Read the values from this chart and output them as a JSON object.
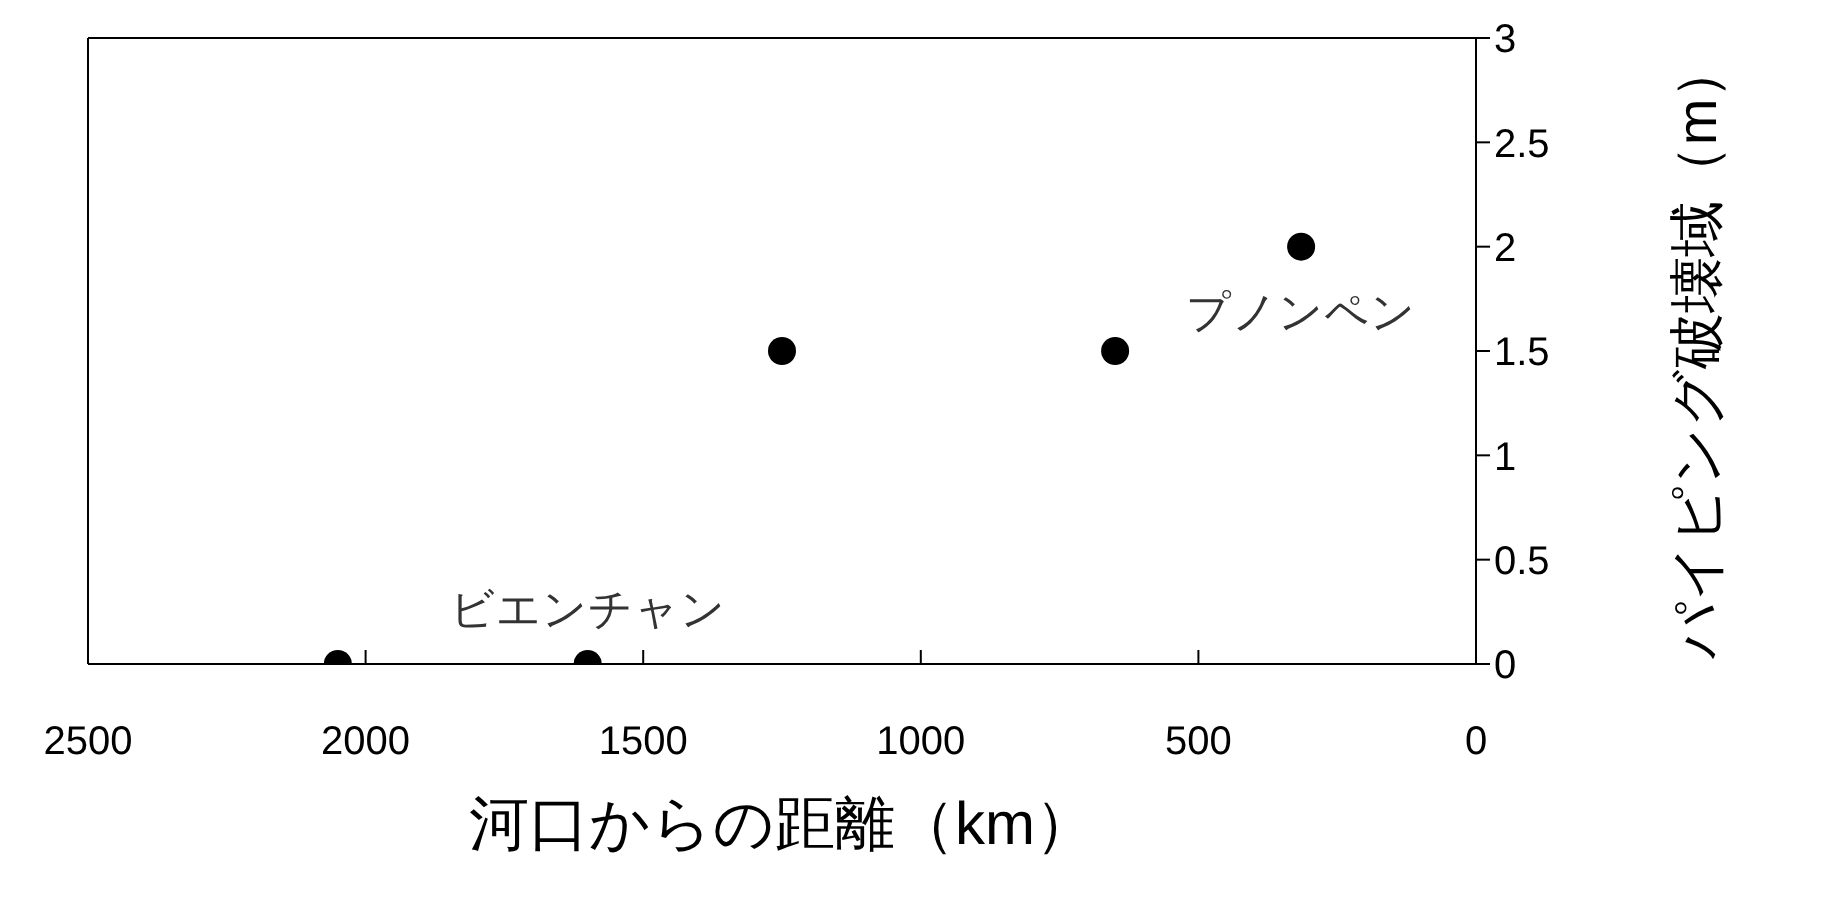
{
  "chart_data": {
    "type": "scatter",
    "xlabel": "河口からの距離（km）",
    "ylabel": "パイピング破壊域（m）",
    "x": [
      2050,
      1600,
      1250,
      650,
      315
    ],
    "values": [
      0,
      0,
      1.5,
      1.5,
      2
    ],
    "color": "#000000",
    "marker": "circle",
    "xlim": [
      2500,
      0
    ],
    "xticks": [
      2500,
      2000,
      1500,
      1000,
      500,
      0
    ],
    "ylim": [
      0,
      3
    ],
    "yticks": [
      0,
      0.5,
      1,
      1.5,
      2,
      2.5,
      3
    ],
    "annotations": [
      {
        "text": "ビエンチャン",
        "x": 1600,
        "y": 0
      },
      {
        "text": "プノンペン",
        "x": 315,
        "y": 2
      }
    ]
  }
}
